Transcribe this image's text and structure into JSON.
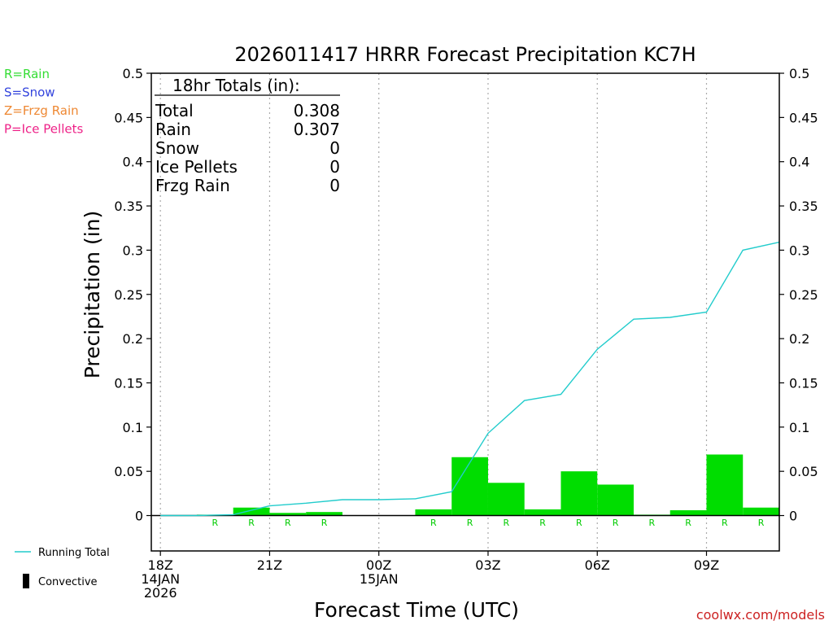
{
  "chart_data": {
    "type": "bar",
    "title": "2026011417 HRRR Forecast Precipitation KC7H",
    "xlabel": "Forecast Time (UTC)",
    "ylabel": "Precipitation (in)",
    "ylim": [
      -0.04,
      0.5
    ],
    "yticks": [
      0,
      0.05,
      0.1,
      0.15,
      0.2,
      0.25,
      0.3,
      0.35,
      0.4,
      0.45,
      0.5
    ],
    "ytick_labels": [
      "0",
      "0.05",
      "0.1",
      "0.15",
      "0.2",
      "0.25",
      "0.3",
      "0.35",
      "0.4",
      "0.45",
      "0.5"
    ],
    "xlim_hours": [
      17.75,
      35
    ],
    "x_ticks": [
      {
        "hour": 18,
        "lines": [
          "18Z",
          "14JAN",
          "2026"
        ]
      },
      {
        "hour": 21,
        "lines": [
          "21Z"
        ]
      },
      {
        "hour": 24,
        "lines": [
          "00Z",
          "15JAN"
        ]
      },
      {
        "hour": 27,
        "lines": [
          "03Z"
        ]
      },
      {
        "hour": 30,
        "lines": [
          "06Z"
        ]
      },
      {
        "hour": 33,
        "lines": [
          "09Z"
        ]
      }
    ],
    "grid": "vertical dotted at each 3h tick",
    "hourly_precip": [
      {
        "hour": 19,
        "value": 0,
        "ptype": ""
      },
      {
        "hour": 20,
        "value": 0.001,
        "ptype": "R"
      },
      {
        "hour": 21,
        "value": 0.009,
        "ptype": "R"
      },
      {
        "hour": 22,
        "value": 0.003,
        "ptype": "R"
      },
      {
        "hour": 23,
        "value": 0.004,
        "ptype": "R"
      },
      {
        "hour": 24,
        "value": 0,
        "ptype": ""
      },
      {
        "hour": 25,
        "value": 0,
        "ptype": ""
      },
      {
        "hour": 26,
        "value": 0.007,
        "ptype": "R"
      },
      {
        "hour": 27,
        "value": 0.066,
        "ptype": "R"
      },
      {
        "hour": 28,
        "value": 0.037,
        "ptype": "R"
      },
      {
        "hour": 29,
        "value": 0.007,
        "ptype": "R"
      },
      {
        "hour": 30,
        "value": 0.05,
        "ptype": "R"
      },
      {
        "hour": 31,
        "value": 0.035,
        "ptype": "R"
      },
      {
        "hour": 32,
        "value": 0.001,
        "ptype": "R"
      },
      {
        "hour": 33,
        "value": 0.006,
        "ptype": "R"
      },
      {
        "hour": 34,
        "value": 0.069,
        "ptype": "R"
      },
      {
        "hour": 35,
        "value": 0.009,
        "ptype": "R"
      }
    ],
    "running_total": [
      {
        "hour": 18,
        "value": 0
      },
      {
        "hour": 19,
        "value": 0
      },
      {
        "hour": 20,
        "value": 0.001
      },
      {
        "hour": 21,
        "value": 0.011
      },
      {
        "hour": 22,
        "value": 0.014
      },
      {
        "hour": 23,
        "value": 0.018
      },
      {
        "hour": 24,
        "value": 0.018
      },
      {
        "hour": 25,
        "value": 0.019
      },
      {
        "hour": 26,
        "value": 0.027
      },
      {
        "hour": 27,
        "value": 0.093
      },
      {
        "hour": 28,
        "value": 0.13
      },
      {
        "hour": 29,
        "value": 0.137
      },
      {
        "hour": 30,
        "value": 0.188
      },
      {
        "hour": 31,
        "value": 0.222
      },
      {
        "hour": 32,
        "value": 0.224
      },
      {
        "hour": 33,
        "value": 0.23
      },
      {
        "hour": 34,
        "value": 0.3
      },
      {
        "hour": 35,
        "value": 0.309
      }
    ],
    "totals": {
      "header": "18hr Totals (in):",
      "rows": [
        {
          "label": "Total",
          "value": "0.308"
        },
        {
          "label": "Rain",
          "value": "0.307"
        },
        {
          "label": "Snow",
          "value": "0"
        },
        {
          "label": "Ice Pellets",
          "value": "0"
        },
        {
          "label": "Frzg Rain",
          "value": "0"
        }
      ]
    },
    "ptype_legend": [
      {
        "text": "R=Rain",
        "color": "#33dd33"
      },
      {
        "text": "S=Snow",
        "color": "#3344dd"
      },
      {
        "text": "Z=Frzg Rain",
        "color": "#ee8833"
      },
      {
        "text": "P=Ice Pellets",
        "color": "#ee2288"
      }
    ],
    "series_legend": [
      {
        "name": "Running Total",
        "color": "#22cccc",
        "kind": "line"
      },
      {
        "name": "Convective",
        "color": "#000000",
        "kind": "bar"
      }
    ],
    "colors": {
      "bar": "#00dd00",
      "line": "#22cccc",
      "ptype_label": "#00cc00"
    },
    "credit": "coolwx.com/models",
    "credit_color": "#cc2222"
  }
}
